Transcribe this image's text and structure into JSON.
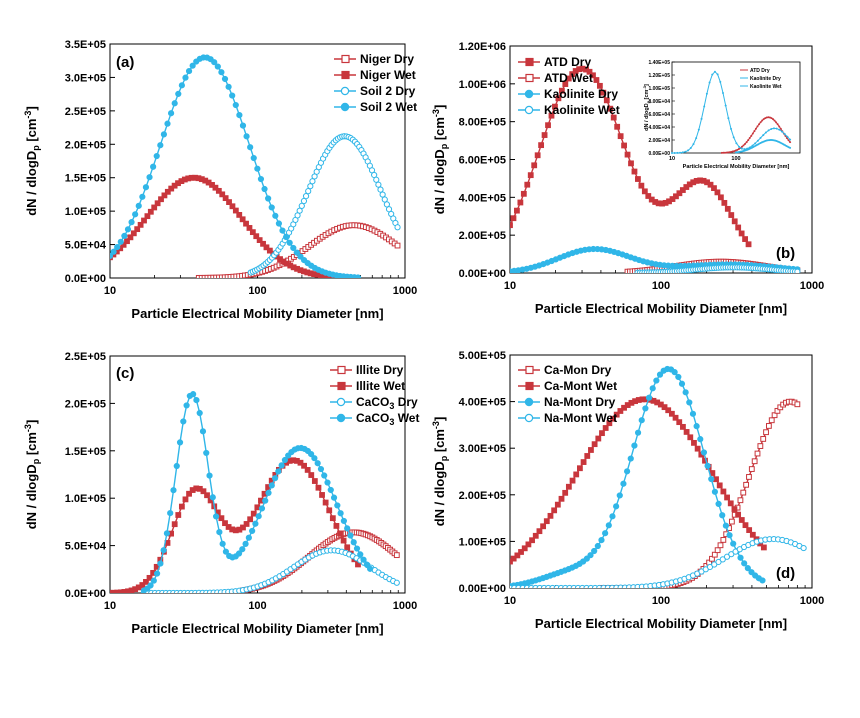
{
  "chart_data": [
    {
      "id": "a",
      "type": "line",
      "panel_label": "(a)",
      "xlabel": "Particle Electrical Mobility Diameter [nm]",
      "ylabel": "dN / dlogD",
      "ylabel_sub": "p",
      "ylabel_unit": " [cm",
      "ylabel_sup": "-3",
      "ylabel_end": "]",
      "xscale": "log",
      "xlim": [
        10,
        1000
      ],
      "ylim": [
        0,
        350000
      ],
      "yticks": [
        0,
        50000,
        100000,
        150000,
        200000,
        250000,
        300000,
        350000
      ],
      "ytick_labels": [
        "0.0E+00",
        "5.0E+04",
        "1.0E+05",
        "1.5E+05",
        "2.0E+05",
        "2.5E+05",
        "3.0E+05",
        "3.5E+05"
      ],
      "xticks": [
        10,
        100,
        1000
      ],
      "xtick_labels": [
        "10",
        "100",
        "1000"
      ],
      "legend_position": "top-right",
      "series": [
        {
          "name": "Niger Dry",
          "color": "#c8363c",
          "marker": "square-open",
          "range": [
            40,
            890
          ],
          "components": [
            {
              "a": 79000,
              "mu": 450,
              "s": 0.3
            }
          ]
        },
        {
          "name": "Niger Wet",
          "color": "#c8363c",
          "marker": "square-filled",
          "range": [
            10,
            390
          ],
          "components": [
            {
              "a": 150000,
              "mu": 37,
              "s": 0.32
            }
          ]
        },
        {
          "name": "Soil 2 Dry",
          "color": "#30b6e8",
          "marker": "circle-open",
          "range": [
            90,
            890
          ],
          "components": [
            {
              "a": 212000,
              "mu": 390,
              "s": 0.25
            }
          ]
        },
        {
          "name": "Soil 2 Wet",
          "color": "#30b6e8",
          "marker": "circle-filled",
          "range": [
            10,
            480
          ],
          "components": [
            {
              "a": 330000,
              "mu": 44,
              "s": 0.3
            }
          ]
        }
      ]
    },
    {
      "id": "b",
      "type": "line",
      "panel_label": "(b)",
      "xlabel": "Particle Electrical Mobility Diameter [nm]",
      "ylabel": "dN / dlogD",
      "ylabel_sub": "p",
      "ylabel_unit": " [cm",
      "ylabel_sup": "-3",
      "ylabel_end": "]",
      "xscale": "log",
      "xlim": [
        10,
        1000
      ],
      "ylim": [
        0,
        1200000
      ],
      "yticks": [
        0,
        200000,
        400000,
        600000,
        800000,
        1000000,
        1200000
      ],
      "ytick_labels": [
        "0.00E+00",
        "2.00E+05",
        "4.00E+05",
        "6.00E+05",
        "8.00E+05",
        "1.00E+06",
        "1.20E+06"
      ],
      "xticks": [
        10,
        100,
        1000
      ],
      "xtick_labels": [
        "10",
        "100",
        "1000"
      ],
      "legend_position": "top-left",
      "series": [
        {
          "name": "ATD Dry",
          "color": "#c8363c",
          "marker": "square-filled",
          "range": [
            10,
            380
          ],
          "components": [
            {
              "a": 1080000,
              "mu": 30,
              "s": 0.28
            },
            {
              "a": 470000,
              "mu": 190,
              "s": 0.2
            }
          ]
        },
        {
          "name": "ATD Wet",
          "color": "#c8363c",
          "marker": "square-open",
          "range": [
            60,
            800
          ],
          "components": [
            {
              "a": 60000,
              "mu": 250,
              "s": 0.3
            }
          ]
        },
        {
          "name": "Kaolinite Dry",
          "color": "#30b6e8",
          "marker": "circle-filled",
          "range": [
            10,
            800
          ],
          "components": [
            {
              "a": 125000,
              "mu": 36,
              "s": 0.24
            },
            {
              "a": 45000,
              "mu": 280,
              "s": 0.35
            }
          ]
        },
        {
          "name": "Kaolinite Wet",
          "color": "#30b6e8",
          "marker": "circle-open",
          "range": [
            70,
            800
          ],
          "components": [
            {
              "a": 30000,
              "mu": 300,
              "s": 0.25
            }
          ]
        }
      ],
      "inset": {
        "ylabel": "dN / dlogD",
        "ylabel_sub": "p",
        "ylabel_unit": " [cm",
        "ylabel_sup": "-3",
        "ylabel_end": "]",
        "xlabel": "Particle Electrical Mobility Diameter [nm]",
        "xlim": [
          10,
          1000
        ],
        "ylim": [
          0,
          140000
        ],
        "yticks": [
          0,
          20000,
          40000,
          60000,
          80000,
          100000,
          120000,
          140000
        ],
        "ytick_labels": [
          "0.00E+00",
          "2.00E+04",
          "4.00E+04",
          "6.00E+04",
          "8.00E+04",
          "1.00E+05",
          "1.20E+05",
          "1.40E+05"
        ],
        "xticks": [
          10,
          100
        ],
        "xtick_labels": [
          "10",
          "100"
        ],
        "legend": [
          "ATD Dry",
          "Kaolinite Dry",
          "Kaolinite Wet"
        ],
        "series": [
          {
            "name": "ATD Dry",
            "color": "#c8363c",
            "range": [
              60,
              700
            ],
            "components": [
              {
                "a": 55000,
                "mu": 320,
                "s": 0.22
              }
            ]
          },
          {
            "name": "Kaolinite Dry",
            "color": "#30b6e8",
            "range": [
              10,
              700
            ],
            "components": [
              {
                "a": 125000,
                "mu": 47,
                "s": 0.16
              },
              {
                "a": 38000,
                "mu": 400,
                "s": 0.22
              }
            ]
          },
          {
            "name": "Kaolinite Wet",
            "color": "#30b6e8",
            "range": [
              100,
              700
            ],
            "components": [
              {
                "a": 20000,
                "mu": 350,
                "s": 0.22
              }
            ]
          }
        ]
      }
    },
    {
      "id": "c",
      "type": "line",
      "panel_label": "(c)",
      "xlabel": "Particle Electrical Mobility Diameter [nm]",
      "ylabel": "dN / dlogD",
      "ylabel_sub": "p",
      "ylabel_unit": " [cm",
      "ylabel_sup": "-3",
      "ylabel_end": "]",
      "xscale": "log",
      "xlim": [
        10,
        1000
      ],
      "ylim": [
        0,
        250000
      ],
      "yticks": [
        0,
        50000,
        100000,
        150000,
        200000,
        250000
      ],
      "ytick_labels": [
        "0.0E+00",
        "5.0E+04",
        "1.0E+05",
        "1.5E+05",
        "2.0E+05",
        "2.5E+05"
      ],
      "xticks": [
        10,
        100,
        1000
      ],
      "xtick_labels": [
        "10",
        "100",
        "1000"
      ],
      "legend_position": "top-right",
      "series": [
        {
          "name": "Illite Dry",
          "color": "#c8363c",
          "marker": "square-open",
          "range": [
            80,
            880
          ],
          "components": [
            {
              "a": 64000,
              "mu": 450,
              "s": 0.3
            }
          ]
        },
        {
          "name": "Illite Wet",
          "color": "#c8363c",
          "marker": "square-filled",
          "range": [
            10,
            480
          ],
          "components": [
            {
              "a": 106000,
              "mu": 38,
              "s": 0.16
            },
            {
              "a": 140000,
              "mu": 175,
              "s": 0.25
            }
          ]
        },
        {
          "name": "CaCO",
          "name_sub": "3",
          "name_end": " Dry",
          "color": "#30b6e8",
          "marker": "circle-open",
          "range": [
            17,
            880
          ],
          "components": [
            {
              "a": 45000,
              "mu": 320,
              "s": 0.26
            }
          ]
        },
        {
          "name": "CaCO",
          "name_sub": "3",
          "name_end": " Wet",
          "color": "#30b6e8",
          "marker": "circle-filled",
          "range": [
            17,
            580
          ],
          "components": [
            {
              "a": 208000,
              "mu": 36,
              "s": 0.11
            },
            {
              "a": 153000,
              "mu": 195,
              "s": 0.25
            }
          ]
        }
      ]
    },
    {
      "id": "d",
      "type": "line",
      "panel_label": "(d)",
      "xlabel": "Particle Electrical Mobility Diameter [nm]",
      "ylabel": "dN / dlogD",
      "ylabel_sub": "p",
      "ylabel_unit": " [cm",
      "ylabel_sup": "-3",
      "ylabel_end": "]",
      "xscale": "log",
      "xlim": [
        10,
        1000
      ],
      "ylim": [
        0,
        500000
      ],
      "yticks": [
        0,
        100000,
        200000,
        300000,
        400000,
        500000
      ],
      "ytick_labels": [
        "0.00E+00",
        "1.00E+05",
        "2.00E+05",
        "3.00E+05",
        "4.00E+05",
        "5.00E+05"
      ],
      "xticks": [
        10,
        100,
        1000
      ],
      "xtick_labels": [
        "10",
        "100",
        "1000"
      ],
      "legend_position": "top-left",
      "series": [
        {
          "name": "Ca-Mon Dry",
          "color": "#c8363c",
          "marker": "square-open",
          "range": [
            40,
            800
          ],
          "components": [
            {
              "a": 400000,
              "mu": 720,
              "s": 0.27
            }
          ]
        },
        {
          "name": "Ca-Mont Wet",
          "color": "#c8363c",
          "marker": "square-filled",
          "range": [
            10,
            480
          ],
          "components": [
            {
              "a": 405000,
              "mu": 78,
              "s": 0.45
            }
          ]
        },
        {
          "name": "Na-Mont Dry",
          "color": "#30b6e8",
          "marker": "circle-filled",
          "range": [
            10,
            470
          ],
          "components": [
            {
              "a": 470000,
              "mu": 112,
              "s": 0.24
            },
            {
              "a": 30000,
              "mu": 25,
              "s": 0.2
            }
          ]
        },
        {
          "name": "Na-Mont Wet",
          "color": "#30b6e8",
          "marker": "circle-open",
          "range": [
            10,
            880
          ],
          "components": [
            {
              "a": 105000,
              "mu": 550,
              "s": 0.32
            }
          ]
        }
      ]
    }
  ]
}
